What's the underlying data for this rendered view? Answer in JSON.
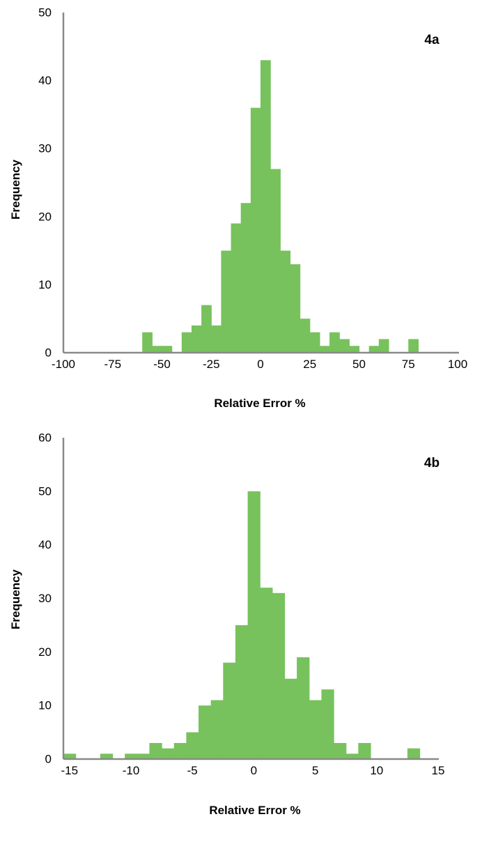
{
  "chart_data": [
    {
      "type": "bar",
      "panel_label": "4a",
      "xlabel": "Relative Error %",
      "ylabel": "Frequency",
      "xlim": [
        -100,
        100
      ],
      "ylim": [
        0,
        50
      ],
      "xticks": [
        -100,
        -75,
        -50,
        -25,
        0,
        25,
        50,
        75,
        100
      ],
      "yticks": [
        0,
        10,
        20,
        30,
        40,
        50
      ],
      "bin_width": 5,
      "grid": false,
      "legend": "none",
      "bar_color": "#77c25c",
      "bins": [
        {
          "x0": -60,
          "value": 3
        },
        {
          "x0": -55,
          "value": 1
        },
        {
          "x0": -50,
          "value": 1
        },
        {
          "x0": -40,
          "value": 3
        },
        {
          "x0": -35,
          "value": 4
        },
        {
          "x0": -30,
          "value": 7
        },
        {
          "x0": -25,
          "value": 4
        },
        {
          "x0": -20,
          "value": 15
        },
        {
          "x0": -15,
          "value": 19
        },
        {
          "x0": -10,
          "value": 22
        },
        {
          "x0": -5,
          "value": 36
        },
        {
          "x0": 0,
          "value": 43
        },
        {
          "x0": 5,
          "value": 27
        },
        {
          "x0": 10,
          "value": 15
        },
        {
          "x0": 15,
          "value": 13
        },
        {
          "x0": 20,
          "value": 5
        },
        {
          "x0": 25,
          "value": 3
        },
        {
          "x0": 30,
          "value": 1
        },
        {
          "x0": 35,
          "value": 3
        },
        {
          "x0": 40,
          "value": 2
        },
        {
          "x0": 45,
          "value": 1
        },
        {
          "x0": 55,
          "value": 1
        },
        {
          "x0": 60,
          "value": 2
        },
        {
          "x0": 75,
          "value": 2
        }
      ]
    },
    {
      "type": "bar",
      "panel_label": "4b",
      "xlabel": "Relative Error %",
      "ylabel": "Frequency",
      "xlim": [
        -15.5,
        15
      ],
      "ylim": [
        0,
        60
      ],
      "xticks": [
        -15,
        -10,
        -5,
        0,
        5,
        10,
        15
      ],
      "yticks": [
        0,
        10,
        20,
        30,
        40,
        50,
        60
      ],
      "bin_width": 1,
      "grid": false,
      "legend": "none",
      "bar_color": "#77c25c",
      "bins": [
        {
          "x0": -15.5,
          "value": 1
        },
        {
          "x0": -12.5,
          "value": 1
        },
        {
          "x0": -10.5,
          "value": 1
        },
        {
          "x0": -9.5,
          "value": 1
        },
        {
          "x0": -8.5,
          "value": 3
        },
        {
          "x0": -7.5,
          "value": 2
        },
        {
          "x0": -6.5,
          "value": 3
        },
        {
          "x0": -5.5,
          "value": 5
        },
        {
          "x0": -4.5,
          "value": 10
        },
        {
          "x0": -3.5,
          "value": 11
        },
        {
          "x0": -2.5,
          "value": 18
        },
        {
          "x0": -1.5,
          "value": 25
        },
        {
          "x0": -0.5,
          "value": 50
        },
        {
          "x0": 0.5,
          "value": 32
        },
        {
          "x0": 1.5,
          "value": 31
        },
        {
          "x0": 2.5,
          "value": 15
        },
        {
          "x0": 3.5,
          "value": 19
        },
        {
          "x0": 4.5,
          "value": 11
        },
        {
          "x0": 5.5,
          "value": 13
        },
        {
          "x0": 6.5,
          "value": 3
        },
        {
          "x0": 7.5,
          "value": 1
        },
        {
          "x0": 8.5,
          "value": 3
        },
        {
          "x0": 12.5,
          "value": 2
        }
      ]
    }
  ]
}
